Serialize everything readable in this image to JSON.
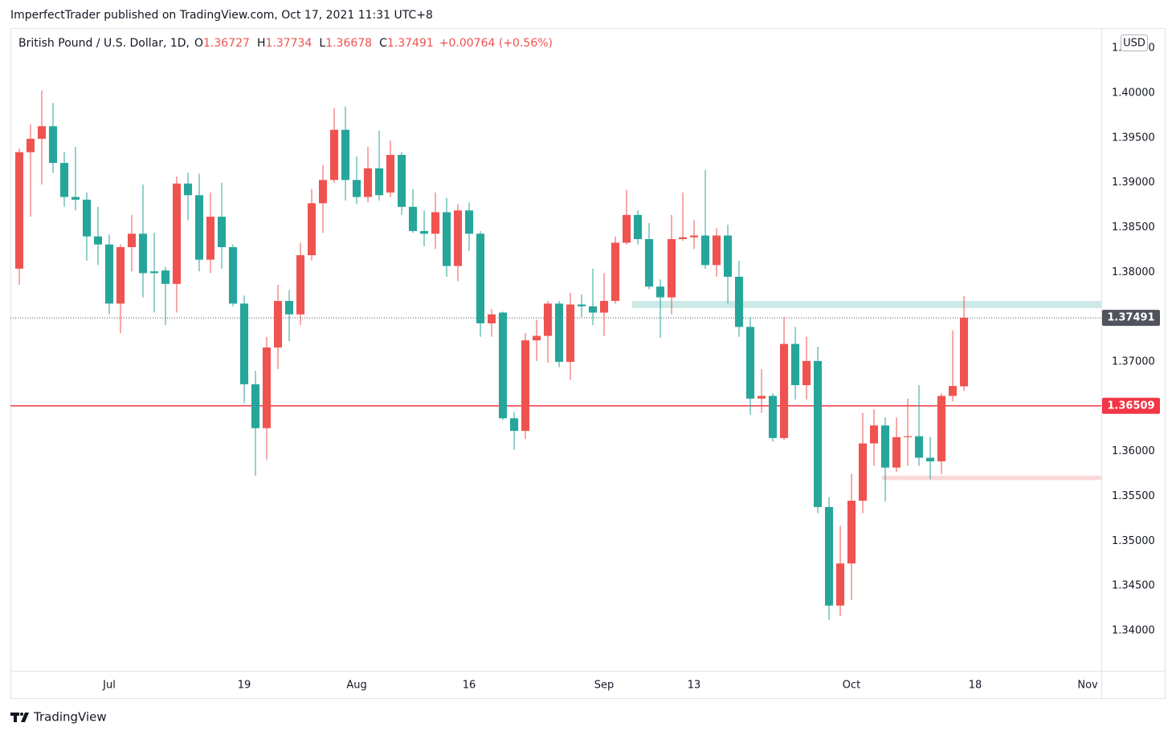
{
  "header": {
    "publisher": "ImperfectTrader published on TradingView.com, Oct 17, 2021 11:31 UTC+8"
  },
  "chart_data": {
    "type": "candlestick",
    "title": "British Pound / U.S. Dollar, 1D,",
    "ohlc_labels": [
      "O",
      "H",
      "L",
      "C"
    ],
    "change": "+0.00764 (+0.56%)",
    "currency": "USD",
    "up_color": "#ef5350",
    "down_color": "#26a69a",
    "x": [
      0,
      1,
      2,
      3,
      4,
      5,
      6,
      7,
      8,
      9,
      10,
      11,
      12,
      13,
      14,
      15,
      16,
      17,
      18,
      19,
      20,
      21,
      22,
      23,
      24,
      25,
      26,
      27,
      28,
      29,
      30,
      31,
      32,
      33,
      34,
      35,
      36,
      37,
      38,
      39,
      40,
      41,
      42,
      43,
      44,
      45,
      46,
      47,
      48,
      49,
      50,
      51,
      52,
      53,
      54,
      55,
      56,
      57,
      58,
      59,
      60,
      61,
      62,
      63,
      64,
      65,
      66,
      67,
      68,
      69,
      70,
      71,
      72,
      73,
      74,
      75,
      76,
      77,
      78,
      79,
      80,
      81,
      82,
      83,
      84
    ],
    "open": [
      1.3804,
      1.3934,
      1.3949,
      1.3963,
      1.3922,
      1.3884,
      1.3881,
      1.384,
      1.3831,
      1.3765,
      1.3828,
      1.3843,
      1.3801,
      1.3802,
      1.3787,
      1.3899,
      1.3886,
      1.3814,
      1.3862,
      1.3828,
      1.3765,
      1.3675,
      1.3626,
      1.3716,
      1.3768,
      1.3753,
      1.3819,
      1.3877,
      1.3903,
      1.3959,
      1.3903,
      1.3884,
      1.3916,
      1.3889,
      1.3931,
      1.3873,
      1.3846,
      1.3843,
      1.3867,
      1.3807,
      1.3869,
      1.3843,
      1.3743,
      1.3755,
      1.3637,
      1.3623,
      1.3724,
      1.3729,
      1.3765,
      1.37,
      1.3764,
      1.3762,
      1.3755,
      1.3768,
      1.3833,
      1.3864,
      1.3837,
      1.3784,
      1.3772,
      1.3837,
      1.3839,
      1.3841,
      1.3808,
      1.3841,
      1.3795,
      1.3739,
      1.3659,
      1.3662,
      1.3615,
      1.372,
      1.3674,
      1.3701,
      1.3538,
      1.3428,
      1.3475,
      1.3545,
      1.3609,
      1.3629,
      1.3582,
      1.3616,
      1.3617,
      1.3593,
      1.3589,
      1.3662,
      1.36727
    ],
    "high": [
      1.3938,
      1.3965,
      1.4003,
      1.3989,
      1.3934,
      1.394,
      1.3889,
      1.3873,
      1.3842,
      1.3831,
      1.3864,
      1.3898,
      1.3844,
      1.3806,
      1.3907,
      1.3911,
      1.391,
      1.3889,
      1.39,
      1.3831,
      1.3774,
      1.369,
      1.3728,
      1.3786,
      1.378,
      1.3833,
      1.3893,
      1.392,
      1.3983,
      1.3985,
      1.3929,
      1.394,
      1.3958,
      1.3947,
      1.3934,
      1.3893,
      1.3869,
      1.3889,
      1.3883,
      1.3876,
      1.3878,
      1.3846,
      1.3759,
      1.3756,
      1.3644,
      1.3732,
      1.3747,
      1.3768,
      1.3768,
      1.3777,
      1.3775,
      1.3804,
      1.3799,
      1.384,
      1.3892,
      1.3869,
      1.3855,
      1.3792,
      1.3864,
      1.3889,
      1.3858,
      1.3914,
      1.3849,
      1.3853,
      1.3813,
      1.375,
      1.3692,
      1.3665,
      1.375,
      1.3739,
      1.3728,
      1.3717,
      1.3549,
      1.3517,
      1.3575,
      1.3643,
      1.3647,
      1.3638,
      1.3638,
      1.3659,
      1.3674,
      1.3616,
      1.3665,
      1.3735,
      1.37734
    ],
    "low": [
      1.3786,
      1.3862,
      1.3898,
      1.3911,
      1.3873,
      1.3869,
      1.3813,
      1.3808,
      1.3753,
      1.3732,
      1.3801,
      1.3772,
      1.3755,
      1.3741,
      1.3755,
      1.3858,
      1.3801,
      1.3799,
      1.3804,
      1.3762,
      1.3654,
      1.3573,
      1.3591,
      1.3692,
      1.3723,
      1.3741,
      1.3813,
      1.3844,
      1.39,
      1.388,
      1.3876,
      1.3878,
      1.388,
      1.3884,
      1.3864,
      1.3844,
      1.3829,
      1.3826,
      1.3795,
      1.379,
      1.3824,
      1.3728,
      1.3728,
      1.3635,
      1.3602,
      1.3614,
      1.3701,
      1.3699,
      1.3694,
      1.368,
      1.375,
      1.3741,
      1.3729,
      1.3765,
      1.3831,
      1.3831,
      1.3781,
      1.3727,
      1.3753,
      1.3835,
      1.3826,
      1.3804,
      1.3795,
      1.3765,
      1.3728,
      1.3641,
      1.3643,
      1.3611,
      1.3613,
      1.3658,
      1.3658,
      1.3531,
      1.3412,
      1.3416,
      1.3434,
      1.3531,
      1.3584,
      1.3544,
      1.3577,
      1.3584,
      1.3584,
      1.3569,
      1.3575,
      1.3656,
      1.36678
    ],
    "close": [
      1.3934,
      1.3949,
      1.3963,
      1.3922,
      1.3884,
      1.3881,
      1.384,
      1.3831,
      1.3765,
      1.3828,
      1.3843,
      1.3799,
      1.3799,
      1.3787,
      1.3899,
      1.3886,
      1.3814,
      1.3862,
      1.3828,
      1.3765,
      1.3675,
      1.3626,
      1.3716,
      1.3768,
      1.3753,
      1.3819,
      1.3877,
      1.3903,
      1.3959,
      1.3903,
      1.3884,
      1.3916,
      1.3886,
      1.3931,
      1.3873,
      1.3846,
      1.3843,
      1.3867,
      1.3807,
      1.3869,
      1.3843,
      1.3743,
      1.3753,
      1.3637,
      1.3623,
      1.3724,
      1.3729,
      1.3765,
      1.37,
      1.3764,
      1.3762,
      1.3755,
      1.3768,
      1.3833,
      1.3864,
      1.3837,
      1.3784,
      1.3772,
      1.3837,
      1.3839,
      1.3841,
      1.3808,
      1.3841,
      1.3795,
      1.3739,
      1.3659,
      1.3662,
      1.3615,
      1.372,
      1.3674,
      1.3701,
      1.3538,
      1.3428,
      1.3475,
      1.3545,
      1.3609,
      1.3629,
      1.3582,
      1.3616,
      1.3617,
      1.3593,
      1.3589,
      1.3662,
      1.3673,
      1.37491
    ],
    "xlim": [
      -0.786,
      96.21
    ],
    "xticks": [
      {
        "value": 8,
        "label": "Jul"
      },
      {
        "value": 20,
        "label": "19"
      },
      {
        "value": 30,
        "label": "Aug"
      },
      {
        "value": 40,
        "label": "16"
      },
      {
        "value": 52,
        "label": "Sep"
      },
      {
        "value": 60,
        "label": "13"
      },
      {
        "value": 74,
        "label": "Oct"
      },
      {
        "value": 85,
        "label": "18"
      },
      {
        "value": 95,
        "label": "Nov"
      }
    ],
    "ylim": [
      1.33552,
      1.40725
    ],
    "yticks": [
      {
        "value": 1.34,
        "label": "1.34000"
      },
      {
        "value": 1.345,
        "label": "1.34500"
      },
      {
        "value": 1.35,
        "label": "1.35000"
      },
      {
        "value": 1.355,
        "label": "1.35500"
      },
      {
        "value": 1.36,
        "label": "1.36000"
      },
      {
        "value": 1.365,
        "label": "1.36500"
      },
      {
        "value": 1.37,
        "label": "1.37000"
      },
      {
        "value": 1.375,
        "label": "1.37500"
      },
      {
        "value": 1.38,
        "label": "1.38000"
      },
      {
        "value": 1.385,
        "label": "1.38500"
      },
      {
        "value": 1.39,
        "label": "1.39000"
      },
      {
        "value": 1.395,
        "label": "1.39500"
      },
      {
        "value": 1.4,
        "label": "1.40000"
      },
      {
        "value": 1.405,
        "label": "1.40500"
      }
    ],
    "hline": {
      "value": 1.36509,
      "color": "#f23645"
    },
    "last_price_color": "#50535e",
    "zones": [
      {
        "from_x": 55,
        "y": [
          1.376,
          1.3768
        ],
        "color": "#cdeae6"
      },
      {
        "from_x": 77.2,
        "y": [
          1.3568,
          1.3573
        ],
        "color": "#fcd9d9"
      }
    ]
  },
  "footer": {
    "brand": "TradingView"
  }
}
